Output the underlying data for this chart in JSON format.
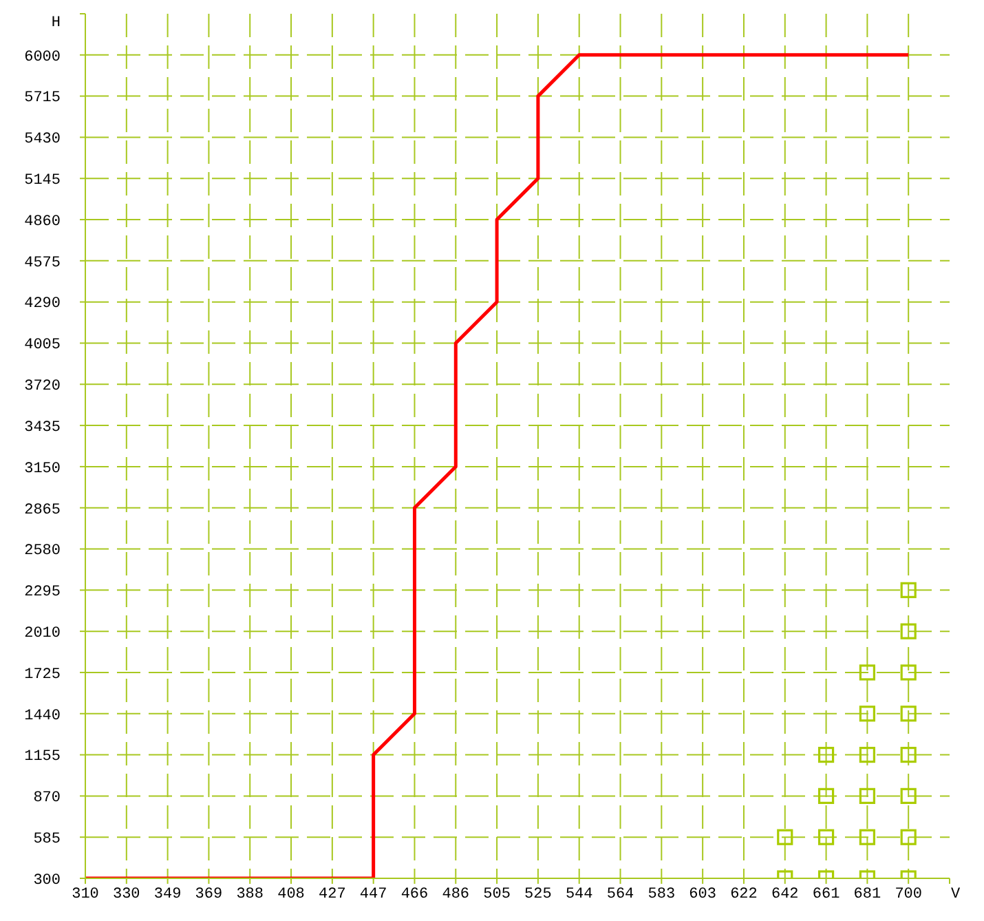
{
  "chart_data": {
    "type": "line",
    "xlabel": "V",
    "ylabel": "H",
    "xlim": [
      310,
      719.5
    ],
    "ylim": [
      300,
      6285
    ],
    "xticks": [
      310,
      {
        "value": 329.5,
        "label": "330"
      },
      349,
      {
        "value": 368.5,
        "label": "369"
      },
      388,
      {
        "value": 407.5,
        "label": "408"
      },
      427,
      {
        "value": 446.5,
        "label": "447"
      },
      466,
      {
        "value": 485.5,
        "label": "486"
      },
      505,
      {
        "value": 524.5,
        "label": "525"
      },
      544,
      {
        "value": 563.5,
        "label": "564"
      },
      583,
      {
        "value": 602.5,
        "label": "603"
      },
      622,
      {
        "value": 641.5,
        "label": "642"
      },
      661,
      {
        "value": 680.5,
        "label": "681"
      },
      700,
      {
        "value": 719.5,
        "label": null
      }
    ],
    "yticks": [
      300,
      585,
      870,
      1155,
      1440,
      1725,
      2010,
      2295,
      2580,
      2865,
      3150,
      3435,
      3720,
      4005,
      4290,
      4575,
      4860,
      5145,
      5430,
      5715,
      6000,
      {
        "value": 6285,
        "label": null
      }
    ],
    "grid": true,
    "series": [
      {
        "color": "#ff0000",
        "marker": "none",
        "x": [
          310,
          446.5,
          446.5,
          466,
          466,
          485.5,
          485.5,
          505,
          505,
          524.5,
          524.5,
          544,
          700
        ],
        "values": [
          300,
          300,
          1155,
          1440,
          2865,
          3150,
          4005,
          4290,
          4860,
          5145,
          5715,
          6000,
          6000
        ]
      },
      {
        "type": "scatter",
        "color": "#aacc00",
        "marker": "square",
        "x": [
          641.5,
          641.5,
          661,
          661,
          661,
          661,
          680.5,
          680.5,
          680.5,
          680.5,
          680.5,
          680.5,
          700,
          700,
          700,
          700,
          700,
          700,
          700,
          700
        ],
        "values": [
          300,
          585,
          300,
          585,
          870,
          1155,
          300,
          585,
          870,
          1155,
          1440,
          1725,
          300,
          585,
          870,
          1155,
          1440,
          1725,
          2010,
          2295
        ]
      }
    ]
  }
}
